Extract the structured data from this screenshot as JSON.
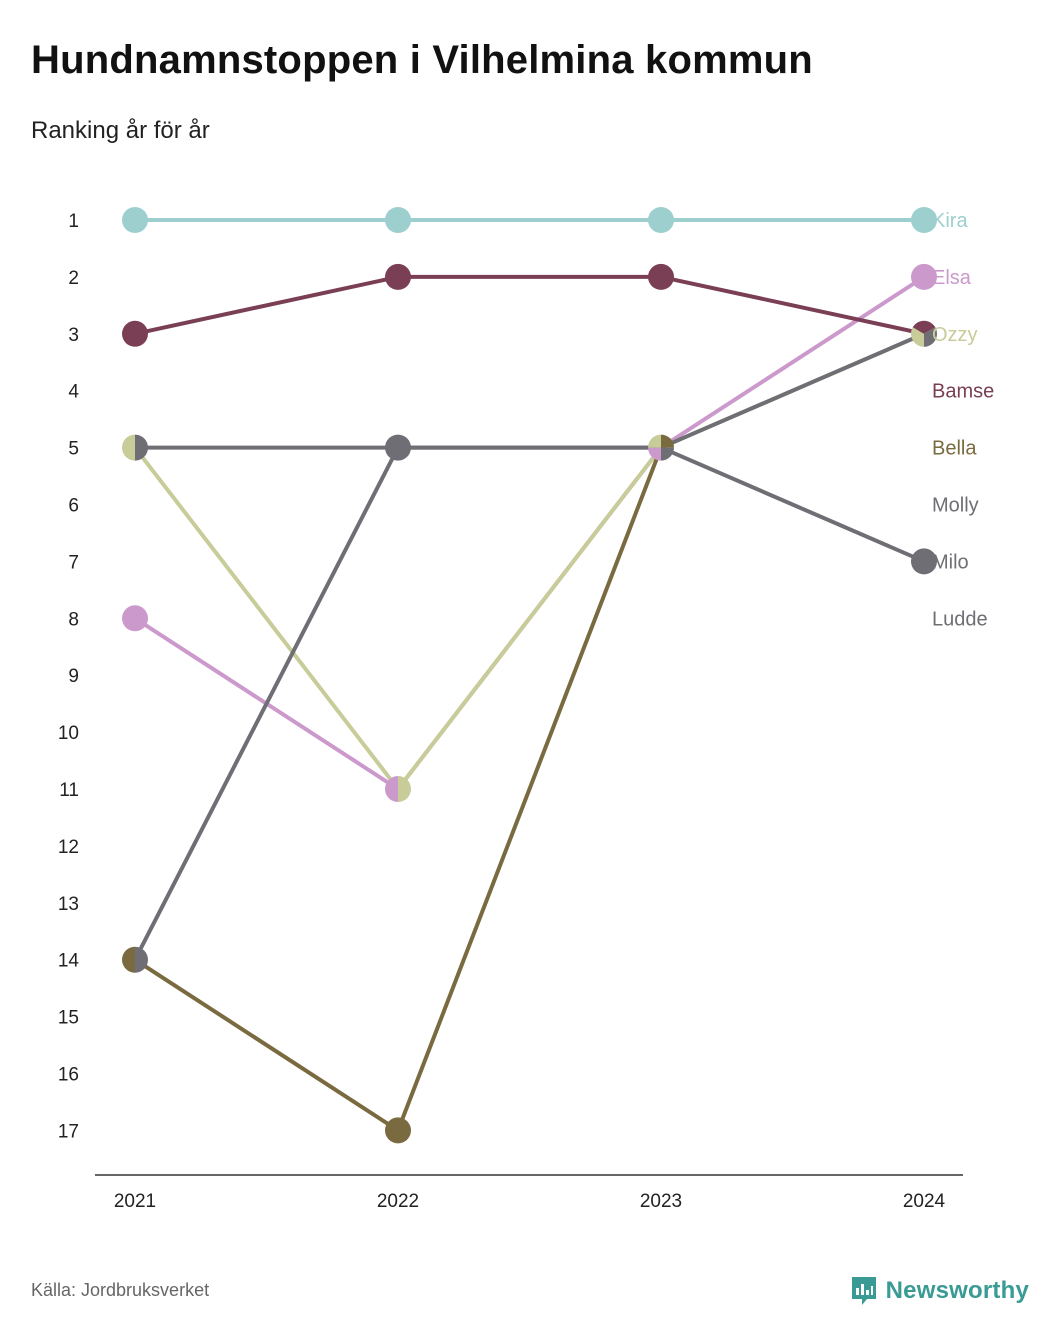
{
  "title": "Hundnamnstoppen i Vilhelmina kommun",
  "subtitle": "Ranking år för år",
  "source": "Källa: Jordbruksverket",
  "brand": "Newsworthy",
  "brand_color": "#3a9a94",
  "chart_data": {
    "type": "line",
    "subtype": "bump",
    "title": "Hundnamnstoppen i Vilhelmina kommun",
    "subtitle": "Ranking år för år",
    "x": [
      "2021",
      "2022",
      "2023",
      "2024"
    ],
    "y_ticks": [
      "1",
      "2",
      "3",
      "4",
      "5",
      "6",
      "7",
      "8",
      "9",
      "10",
      "11",
      "12",
      "13",
      "14",
      "15",
      "16",
      "17"
    ],
    "ylim": [
      1,
      17
    ],
    "y_inverted": true,
    "grid": false,
    "legend": "right-end labels",
    "series": [
      {
        "name": "Kira",
        "color": "#9ecfcf",
        "values": [
          1,
          1,
          1,
          1
        ]
      },
      {
        "name": "Elsa",
        "color": "#cc99cc",
        "values": [
          8,
          11,
          5,
          2
        ]
      },
      {
        "name": "Ozzy",
        "color": "#c8cc99",
        "values": [
          5,
          11,
          5,
          3
        ]
      },
      {
        "name": "Bamse",
        "color": "#7a3f55",
        "values": [
          3,
          2,
          2,
          3
        ]
      },
      {
        "name": "Bella",
        "color": "#7a6a3f",
        "values": [
          14,
          17,
          5,
          null
        ]
      },
      {
        "name": "Molly",
        "color": "#6e6e74",
        "values": [
          5,
          5,
          5,
          7
        ]
      },
      {
        "name": "Milo",
        "color": "#6e6e74",
        "values": [
          14,
          5,
          5,
          3
        ]
      },
      {
        "name": "Ludde",
        "color": "#6e6e74",
        "values": [
          null,
          null,
          null,
          null
        ]
      }
    ],
    "end_labels": [
      {
        "name": "Kira",
        "rank": 1,
        "color": "#9ecfcf"
      },
      {
        "name": "Elsa",
        "rank": 2,
        "color": "#cc99cc"
      },
      {
        "name": "Ozzy",
        "rank": 3,
        "color": "#c8cc99"
      },
      {
        "name": "Bamse",
        "rank": 4,
        "color": "#7a3f55"
      },
      {
        "name": "Bella",
        "rank": 5,
        "color": "#7a6a3f"
      },
      {
        "name": "Molly",
        "rank": 6,
        "color": "#6e6e74"
      },
      {
        "name": "Milo",
        "rank": 7,
        "color": "#6e6e74"
      },
      {
        "name": "Ludde",
        "rank": 8,
        "color": "#6e6e74"
      }
    ]
  }
}
